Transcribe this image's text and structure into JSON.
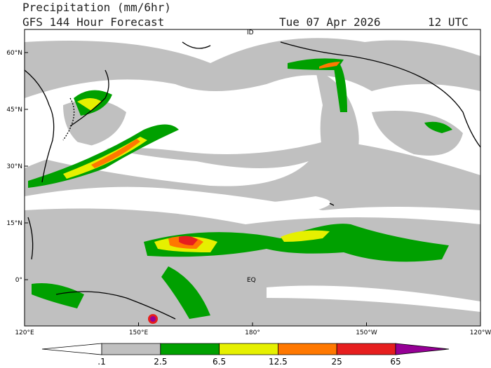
{
  "header": {
    "title": "Precipitation (mm/6hr)",
    "subtitle": "GFS 144 Hour Forecast",
    "date": "Tue 07 Apr 2026",
    "time": "12 UTC"
  },
  "map": {
    "lat_labels": [
      "60°N",
      "45°N",
      "30°N",
      "15°N",
      "0°"
    ],
    "lon_labels": [
      "120°E",
      "150°E",
      "180°",
      "150°W",
      "120°W"
    ],
    "annotations": {
      "equator": "EQ",
      "dateline": "ID"
    }
  },
  "colorbar": {
    "labels": [
      ".1",
      "2.5",
      "6.5",
      "12.5",
      "25",
      "65"
    ],
    "colors": [
      "#ffffff",
      "#c0c0c0",
      "#00a000",
      "#e6f000",
      "#ff7800",
      "#e61e1e",
      "#960096"
    ]
  }
}
